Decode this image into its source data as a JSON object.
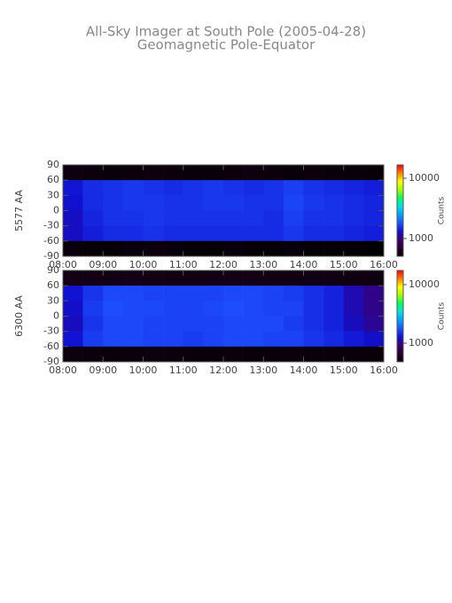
{
  "chart_data": [
    {
      "type": "heatmap",
      "title": "All-Sky Imager at South Pole (2005-04-28)",
      "subtitle": "Geomagnetic Pole-Equator",
      "ylabel": "5577 AA",
      "colorbar_label": "Counts",
      "x_bins": [
        8,
        8.5,
        9,
        9.5,
        10,
        10.5,
        11,
        11.5,
        12,
        12.5,
        13,
        13.5,
        14,
        14.5,
        15,
        15.5,
        16
      ],
      "y_bins": [
        90,
        60,
        30,
        0,
        -30,
        -60,
        -90
      ],
      "values": [
        [
          560,
          550,
          540,
          550,
          560,
          550,
          540,
          545,
          550,
          560,
          550,
          540,
          550,
          545,
          540,
          535
        ],
        [
          1350,
          1500,
          1550,
          1600,
          1550,
          1500,
          1550,
          1600,
          1550,
          1500,
          1550,
          1650,
          1550,
          1500,
          1450,
          1400
        ],
        [
          1300,
          1500,
          1550,
          1600,
          1600,
          1550,
          1550,
          1600,
          1600,
          1550,
          1550,
          1700,
          1600,
          1550,
          1500,
          1450
        ],
        [
          1250,
          1450,
          1550,
          1550,
          1600,
          1550,
          1550,
          1550,
          1550,
          1550,
          1500,
          1650,
          1550,
          1550,
          1500,
          1450
        ],
        [
          1250,
          1400,
          1500,
          1500,
          1550,
          1500,
          1500,
          1500,
          1500,
          1500,
          1500,
          1600,
          1500,
          1500,
          1450,
          1400
        ],
        [
          540,
          530,
          530,
          540,
          550,
          540,
          530,
          530,
          540,
          530,
          530,
          540,
          530,
          530,
          525,
          520
        ]
      ],
      "xlim": [
        8,
        16
      ],
      "xticks": [
        {
          "value": 8,
          "label": "08:00"
        },
        {
          "value": 9,
          "label": "09:00"
        },
        {
          "value": 10,
          "label": "10:00"
        },
        {
          "value": 11,
          "label": "11:00"
        },
        {
          "value": 12,
          "label": "12:00"
        },
        {
          "value": 13,
          "label": "13:00"
        },
        {
          "value": 14,
          "label": "14:00"
        },
        {
          "value": 15,
          "label": "15:00"
        },
        {
          "value": 16,
          "label": "16:00"
        }
      ],
      "ylim": [
        -90,
        90
      ],
      "yticks": [
        90,
        60,
        30,
        0,
        -30,
        -60,
        -90
      ],
      "clim": [
        507,
        16600
      ],
      "cticks": [
        1000,
        10000
      ],
      "log_color": true,
      "colormap": [
        "#000000",
        "#2a0030",
        "#3a0070",
        "#1010d0",
        "#1e50ff",
        "#00a0ff",
        "#00e0e0",
        "#00ff60",
        "#a0ff00",
        "#ffff00",
        "#ff8000",
        "#ff0000"
      ]
    },
    {
      "type": "heatmap",
      "ylabel": "6300 AA",
      "colorbar_label": "Counts",
      "x_bins": [
        8,
        8.5,
        9,
        9.5,
        10,
        10.5,
        11,
        11.5,
        12,
        12.5,
        13,
        13.5,
        14,
        14.5,
        15,
        15.5,
        16
      ],
      "y_bins": [
        90,
        60,
        30,
        0,
        -30,
        -60,
        -90
      ],
      "values": [
        [
          560,
          555,
          550,
          560,
          555,
          550,
          550,
          555,
          560,
          555,
          550,
          550,
          545,
          545,
          540,
          540
        ],
        [
          1300,
          1550,
          1700,
          1700,
          1650,
          1650,
          1650,
          1650,
          1700,
          1700,
          1650,
          1600,
          1500,
          1400,
          1150,
          1000
        ],
        [
          1250,
          1600,
          1750,
          1700,
          1700,
          1650,
          1650,
          1700,
          1750,
          1700,
          1650,
          1650,
          1500,
          1400,
          1150,
          1000
        ],
        [
          1200,
          1550,
          1700,
          1700,
          1650,
          1650,
          1650,
          1650,
          1700,
          1700,
          1700,
          1600,
          1500,
          1400,
          1200,
          1050
        ],
        [
          1300,
          1600,
          1700,
          1700,
          1650,
          1650,
          1600,
          1650,
          1700,
          1700,
          1650,
          1650,
          1550,
          1450,
          1350,
          1250
        ],
        [
          530,
          525,
          520,
          525,
          530,
          525,
          520,
          520,
          525,
          520,
          520,
          525,
          520,
          520,
          515,
          515
        ]
      ],
      "xlim": [
        8,
        16
      ],
      "xticks": [
        {
          "value": 8,
          "label": "08:00"
        },
        {
          "value": 9,
          "label": "09:00"
        },
        {
          "value": 10,
          "label": "10:00"
        },
        {
          "value": 11,
          "label": "11:00"
        },
        {
          "value": 12,
          "label": "12:00"
        },
        {
          "value": 13,
          "label": "13:00"
        },
        {
          "value": 14,
          "label": "14:00"
        },
        {
          "value": 15,
          "label": "15:00"
        },
        {
          "value": 16,
          "label": "16:00"
        }
      ],
      "ylim": [
        -90,
        90
      ],
      "yticks": [
        90,
        60,
        30,
        0,
        -30,
        -60,
        -90
      ],
      "clim": [
        480,
        17500
      ],
      "cticks": [
        1000,
        10000
      ],
      "log_color": true,
      "colormap": [
        "#000000",
        "#2a0030",
        "#3a0070",
        "#1010d0",
        "#1e50ff",
        "#00a0ff",
        "#00e0e0",
        "#00ff60",
        "#a0ff00",
        "#ffff00",
        "#ff8000",
        "#ff0000"
      ]
    }
  ]
}
